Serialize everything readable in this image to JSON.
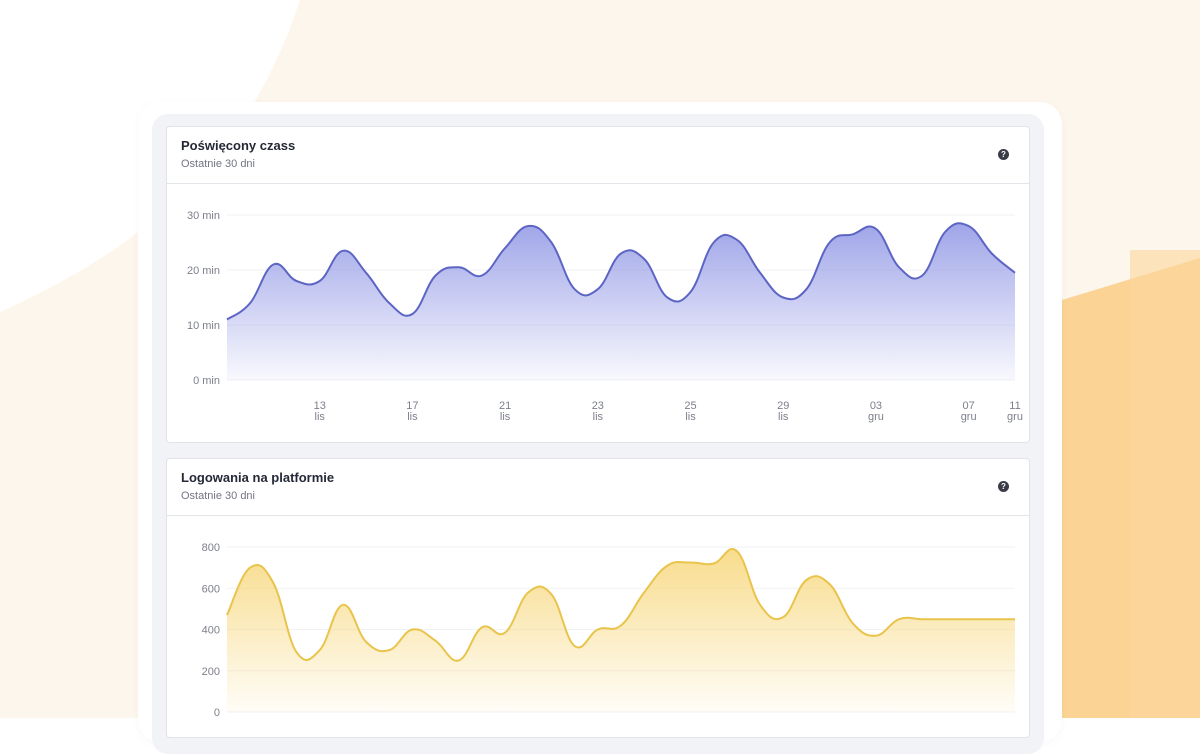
{
  "colors": {
    "page_bg": "#ffffff",
    "peach_bg": "#fdf6ec",
    "orange_bg": "#fbd394",
    "blue_line": "#5c65c4",
    "blue_fill": "#8e95e4",
    "yellow_line": "#e9c44c",
    "yellow_fill": "#f7d678"
  },
  "cards": [
    {
      "title": "Poświęcony czass",
      "subtitle": "Ostatnie 30 dni",
      "help_icon": "question-circle-icon"
    },
    {
      "title": "Logowania na platformie",
      "subtitle": "Ostatnie 30 dni",
      "help_icon": "question-circle-icon"
    }
  ],
  "chart_data": [
    {
      "type": "area",
      "title": "Poświęcony czass",
      "subtitle": "Ostatnie 30 dni",
      "ylim": [
        0,
        30
      ],
      "yticks": [
        "0 min",
        "10 min",
        "20 min",
        "30 min"
      ],
      "ytick_values": [
        0,
        10,
        20,
        30
      ],
      "xlim": [
        0,
        34
      ],
      "xticks": [
        {
          "x": 4,
          "day": "13",
          "month": "lis"
        },
        {
          "x": 8,
          "day": "17",
          "month": "lis"
        },
        {
          "x": 12,
          "day": "21",
          "month": "lis"
        },
        {
          "x": 16,
          "day": "23",
          "month": "lis"
        },
        {
          "x": 20,
          "day": "25",
          "month": "lis"
        },
        {
          "x": 24,
          "day": "29",
          "month": "lis"
        },
        {
          "x": 28,
          "day": "03",
          "month": "gru"
        },
        {
          "x": 32,
          "day": "07",
          "month": "gru"
        },
        {
          "x": 34,
          "day": "11",
          "month": "gru"
        }
      ],
      "x": [
        0,
        1,
        2,
        3,
        4,
        5,
        6,
        7,
        8,
        9,
        10,
        11,
        12,
        13,
        14,
        15,
        16,
        17,
        18,
        19,
        20,
        21,
        22,
        23,
        24,
        25,
        26,
        27,
        28,
        29,
        30,
        31,
        32,
        33,
        34
      ],
      "values": [
        11,
        14,
        21,
        18,
        18,
        23.5,
        19.5,
        14,
        12,
        19,
        20.5,
        19,
        24,
        28,
        25,
        16.5,
        16.5,
        23,
        22,
        15,
        16,
        25,
        25.5,
        19.5,
        15,
        16.5,
        25,
        26.5,
        27.5,
        20.5,
        19,
        27,
        28,
        23,
        19.5
      ]
    },
    {
      "type": "area",
      "title": "Logowania na platformie",
      "subtitle": "Ostatnie 30 dni",
      "ylim": [
        0,
        800
      ],
      "yticks": [
        "0",
        "200",
        "400",
        "600",
        "800"
      ],
      "ytick_values": [
        0,
        200,
        400,
        600,
        800
      ],
      "xlim": [
        0,
        34
      ],
      "x": [
        0,
        1,
        2,
        3,
        4,
        5,
        6,
        7,
        8,
        9,
        10,
        11,
        12,
        13,
        14,
        15,
        16,
        17,
        18,
        19,
        20,
        21,
        22,
        23,
        24,
        25,
        26,
        27,
        28,
        29,
        30,
        31,
        32,
        33,
        34
      ],
      "values": [
        470,
        700,
        625,
        290,
        300,
        520,
        340,
        300,
        400,
        345,
        250,
        410,
        385,
        580,
        570,
        320,
        400,
        420,
        580,
        710,
        725,
        720,
        780,
        520,
        460,
        640,
        620,
        430,
        370,
        450,
        450,
        450,
        450,
        450,
        450
      ]
    }
  ]
}
